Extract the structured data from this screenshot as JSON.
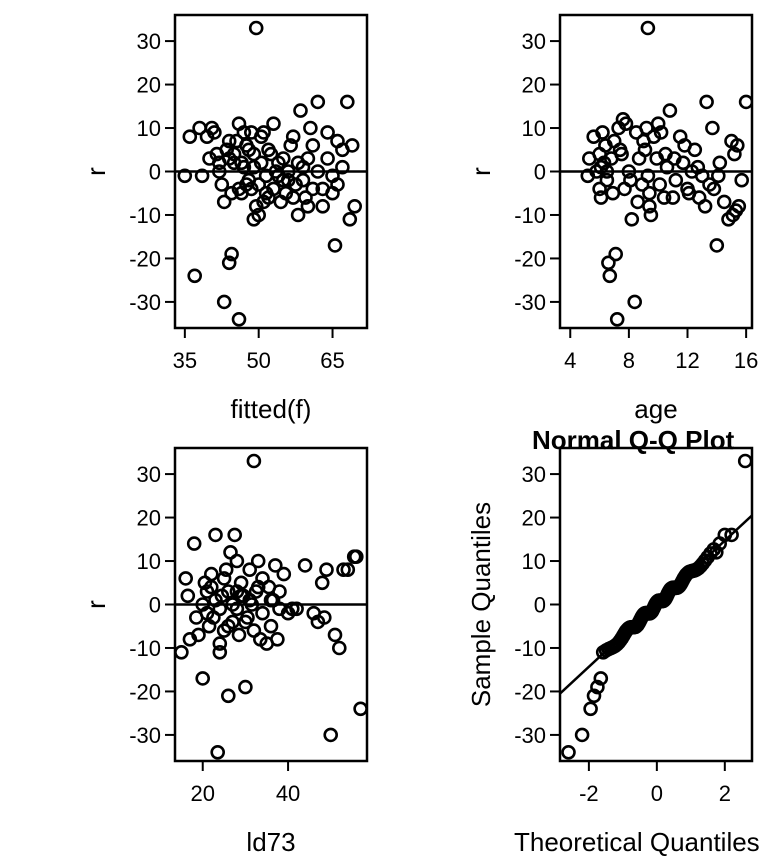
{
  "chart_data": [
    {
      "type": "scatter",
      "title": "",
      "xlabel": "fitted(f)",
      "ylabel": "r",
      "xlim": [
        33,
        72
      ],
      "ylim": [
        -36,
        36
      ],
      "xticks": [
        "35",
        "50",
        "65"
      ],
      "xtick_values": [
        35,
        50,
        65
      ],
      "yticks": [
        "30",
        "20",
        "10",
        "0",
        "-10",
        "-20",
        "-30"
      ],
      "ytick_values": [
        30,
        20,
        10,
        0,
        -10,
        -20,
        -30
      ],
      "reference_line": {
        "type": "horizontal",
        "y": 0
      },
      "marker": "open-circle",
      "points": [
        [
          49.5,
          33
        ],
        [
          36,
          8
        ],
        [
          38,
          10
        ],
        [
          39.5,
          8
        ],
        [
          40.5,
          10
        ],
        [
          41,
          9
        ],
        [
          42,
          2
        ],
        [
          43,
          -7
        ],
        [
          43.5,
          5
        ],
        [
          44,
          3
        ],
        [
          44.5,
          -5
        ],
        [
          45,
          4
        ],
        [
          45.5,
          7
        ],
        [
          46,
          11
        ],
        [
          46.5,
          2
        ],
        [
          47,
          9
        ],
        [
          47.5,
          -3
        ],
        [
          48,
          5
        ],
        [
          48.5,
          -4
        ],
        [
          49,
          1
        ],
        [
          49.5,
          -8
        ],
        [
          50,
          -10
        ],
        [
          50.5,
          8
        ],
        [
          51,
          9
        ],
        [
          51.5,
          -1
        ],
        [
          52,
          -6
        ],
        [
          52.5,
          4
        ],
        [
          53,
          11
        ],
        [
          53.5,
          0
        ],
        [
          54,
          -1
        ],
        [
          54.5,
          -7
        ],
        [
          55,
          3
        ],
        [
          55.5,
          -5
        ],
        [
          56,
          -2
        ],
        [
          56.5,
          6
        ],
        [
          57,
          8
        ],
        [
          57.5,
          -3
        ],
        [
          58,
          -10
        ],
        [
          58.5,
          14
        ],
        [
          59,
          1
        ],
        [
          59.5,
          -6
        ],
        [
          60,
          3
        ],
        [
          60.5,
          10
        ],
        [
          61,
          -4
        ],
        [
          62,
          16
        ],
        [
          63,
          -8
        ],
        [
          64,
          3
        ],
        [
          65,
          -5
        ],
        [
          65.5,
          -17
        ],
        [
          66,
          7
        ],
        [
          67,
          5
        ],
        [
          68,
          16
        ],
        [
          68.5,
          -11
        ],
        [
          69,
          6
        ],
        [
          69.5,
          -8
        ],
        [
          35,
          -1
        ],
        [
          37,
          -24
        ],
        [
          38.5,
          -1
        ],
        [
          40,
          3
        ],
        [
          41.5,
          4
        ],
        [
          42.5,
          -3
        ],
        [
          43,
          -30
        ],
        [
          44,
          -21
        ],
        [
          44.5,
          -19
        ],
        [
          46,
          -34
        ],
        [
          46.5,
          -5
        ],
        [
          47,
          1
        ],
        [
          48,
          -2
        ],
        [
          49,
          -11
        ],
        [
          49,
          4
        ],
        [
          50,
          -3
        ],
        [
          51,
          -7
        ],
        [
          52,
          5
        ],
        [
          53,
          -4
        ],
        [
          54,
          2
        ],
        [
          55,
          -2
        ],
        [
          56,
          0
        ],
        [
          57,
          -6
        ],
        [
          58,
          2
        ],
        [
          59,
          -2
        ],
        [
          60,
          -8
        ],
        [
          61,
          6
        ],
        [
          62,
          0
        ],
        [
          63,
          -4
        ],
        [
          64,
          9
        ],
        [
          65,
          -1
        ],
        [
          66,
          -3
        ],
        [
          67,
          1
        ],
        [
          42,
          0
        ],
        [
          44,
          7
        ],
        [
          45,
          2
        ],
        [
          46,
          -4
        ],
        [
          47.5,
          6
        ],
        [
          48.5,
          9
        ],
        [
          50.5,
          2
        ],
        [
          51.5,
          -5
        ]
      ]
    },
    {
      "type": "scatter",
      "title": "",
      "xlabel": "age",
      "ylabel": "r",
      "xlim": [
        3.3,
        16.4
      ],
      "ylim": [
        -36,
        36
      ],
      "xticks": [
        "4",
        "8",
        "12",
        "16"
      ],
      "xtick_values": [
        4,
        8,
        12,
        16
      ],
      "yticks": [
        "30",
        "20",
        "10",
        "0",
        "-10",
        "-20",
        "-30"
      ],
      "ytick_values": [
        30,
        20,
        10,
        0,
        -10,
        -20,
        -30
      ],
      "reference_line": {
        "type": "horizontal",
        "y": 0
      },
      "marker": "open-circle",
      "points": [
        [
          9.3,
          33
        ],
        [
          5.2,
          -1
        ],
        [
          5.3,
          3
        ],
        [
          5.6,
          8
        ],
        [
          5.8,
          0
        ],
        [
          6,
          4
        ],
        [
          6,
          -4
        ],
        [
          6.1,
          -6
        ],
        [
          6.2,
          9
        ],
        [
          6.3,
          2
        ],
        [
          6.4,
          6
        ],
        [
          6.5,
          -2
        ],
        [
          6.6,
          -21
        ],
        [
          6.7,
          -24
        ],
        [
          6.8,
          3
        ],
        [
          6.9,
          -5
        ],
        [
          7,
          7
        ],
        [
          7.1,
          -19
        ],
        [
          7.2,
          -34
        ],
        [
          7.3,
          10
        ],
        [
          7.5,
          4
        ],
        [
          7.6,
          12
        ],
        [
          7.8,
          11
        ],
        [
          8,
          0
        ],
        [
          8.2,
          -11
        ],
        [
          8.4,
          -30
        ],
        [
          8.5,
          9
        ],
        [
          8.7,
          3
        ],
        [
          8.9,
          -3
        ],
        [
          9.1,
          5
        ],
        [
          9.2,
          10
        ],
        [
          9.3,
          -1
        ],
        [
          9.4,
          -5
        ],
        [
          9.4,
          -8
        ],
        [
          9.5,
          -10
        ],
        [
          9.7,
          8
        ],
        [
          9.9,
          3
        ],
        [
          10,
          11
        ],
        [
          10.2,
          9
        ],
        [
          10.4,
          -6
        ],
        [
          10.6,
          1
        ],
        [
          10.8,
          14
        ],
        [
          11,
          -6
        ],
        [
          11.2,
          -2
        ],
        [
          11.5,
          8
        ],
        [
          11.7,
          2
        ],
        [
          12,
          -4
        ],
        [
          12.3,
          0
        ],
        [
          12.5,
          5
        ],
        [
          12.8,
          -6
        ],
        [
          13,
          -1
        ],
        [
          13.3,
          16
        ],
        [
          13.5,
          -3
        ],
        [
          13.7,
          10
        ],
        [
          14,
          -17
        ],
        [
          14.2,
          2
        ],
        [
          14.5,
          -7
        ],
        [
          14.8,
          -11
        ],
        [
          15,
          7
        ],
        [
          15.1,
          -10
        ],
        [
          15.2,
          4
        ],
        [
          15.4,
          6
        ],
        [
          15.5,
          -8
        ],
        [
          15.7,
          -2
        ],
        [
          16,
          16
        ],
        [
          6.5,
          0
        ],
        [
          7.4,
          5
        ],
        [
          8.1,
          -2
        ],
        [
          9,
          7
        ],
        [
          10.1,
          -3
        ],
        [
          11.1,
          3
        ],
        [
          12.1,
          -5
        ],
        [
          13.2,
          -8
        ],
        [
          14.1,
          -1
        ],
        [
          15.3,
          -9
        ],
        [
          6.1,
          1
        ],
        [
          7.7,
          -4
        ],
        [
          8.6,
          -7
        ],
        [
          10.5,
          4
        ],
        [
          11.8,
          6
        ],
        [
          12.7,
          1
        ],
        [
          13.8,
          -4
        ]
      ]
    },
    {
      "type": "scatter",
      "title": "",
      "xlabel": "ld73",
      "ylabel": "r",
      "xlim": [
        13.5,
        58.5
      ],
      "ylim": [
        -36,
        36
      ],
      "xticks": [
        "20",
        "40"
      ],
      "xtick_values": [
        20,
        40
      ],
      "yticks": [
        "30",
        "20",
        "10",
        "0",
        "-10",
        "-20",
        "-30"
      ],
      "ytick_values": [
        30,
        20,
        10,
        0,
        -10,
        -20,
        -30
      ],
      "reference_line": {
        "type": "horizontal",
        "y": 0
      },
      "marker": "open-circle",
      "points": [
        [
          32,
          33
        ],
        [
          15,
          -11
        ],
        [
          16,
          6
        ],
        [
          16.5,
          2
        ],
        [
          17,
          -8
        ],
        [
          18,
          14
        ],
        [
          18.5,
          -3
        ],
        [
          19,
          -7
        ],
        [
          20,
          -17
        ],
        [
          20.5,
          5
        ],
        [
          21,
          3
        ],
        [
          21.5,
          -5
        ],
        [
          22,
          7
        ],
        [
          22.5,
          -3
        ],
        [
          23,
          16
        ],
        [
          23.5,
          -34
        ],
        [
          24,
          -11
        ],
        [
          24.5,
          2
        ],
        [
          25,
          -6
        ],
        [
          25.5,
          8
        ],
        [
          26,
          -21
        ],
        [
          26.5,
          12
        ],
        [
          27,
          -4
        ],
        [
          27.5,
          16
        ],
        [
          28,
          3
        ],
        [
          28.5,
          -7
        ],
        [
          29,
          5
        ],
        [
          29.5,
          2
        ],
        [
          30,
          -19
        ],
        [
          30.5,
          -3
        ],
        [
          31,
          8
        ],
        [
          31.5,
          0
        ],
        [
          32,
          -6
        ],
        [
          32.5,
          3
        ],
        [
          33,
          10
        ],
        [
          33.5,
          -8
        ],
        [
          34,
          -2
        ],
        [
          35,
          -9
        ],
        [
          35.5,
          4
        ],
        [
          36,
          -5
        ],
        [
          36.5,
          1
        ],
        [
          37,
          9
        ],
        [
          37.5,
          -8
        ],
        [
          38,
          -1
        ],
        [
          39,
          7
        ],
        [
          40,
          -2
        ],
        [
          42,
          -1
        ],
        [
          44,
          9
        ],
        [
          46,
          -2
        ],
        [
          47,
          -4
        ],
        [
          48,
          5
        ],
        [
          48.5,
          -3
        ],
        [
          49,
          8
        ],
        [
          50,
          -30
        ],
        [
          51,
          -7
        ],
        [
          52,
          -10
        ],
        [
          53,
          8
        ],
        [
          54,
          8
        ],
        [
          55.5,
          11
        ],
        [
          56,
          11
        ],
        [
          57,
          -24
        ],
        [
          20,
          0
        ],
        [
          21,
          -2
        ],
        [
          22,
          4
        ],
        [
          23,
          1
        ],
        [
          24,
          -1
        ],
        [
          25,
          6
        ],
        [
          26,
          3
        ],
        [
          27,
          0
        ],
        [
          28,
          -1
        ],
        [
          29,
          2
        ],
        [
          30,
          -4
        ],
        [
          31,
          1
        ],
        [
          33,
          4
        ],
        [
          34,
          6
        ],
        [
          36,
          1
        ],
        [
          38,
          3
        ],
        [
          41,
          -1
        ],
        [
          24,
          -9
        ],
        [
          26,
          -5
        ],
        [
          28,
          10
        ]
      ]
    },
    {
      "type": "scatter",
      "title": "Normal Q-Q Plot",
      "xlabel": "Theoretical Quantiles",
      "ylabel": "Sample Quantiles",
      "xlim": [
        -2.85,
        2.8
      ],
      "ylim": [
        -36,
        36
      ],
      "xticks": [
        "-2",
        "0",
        "2"
      ],
      "xtick_values": [
        -2,
        0,
        2
      ],
      "yticks": [
        "30",
        "20",
        "10",
        "0",
        "-10",
        "-20",
        "-30"
      ],
      "ytick_values": [
        30,
        20,
        10,
        0,
        -10,
        -20,
        -30
      ],
      "reference_line": {
        "type": "line",
        "x1": -2.85,
        "y1": -20.5,
        "x2": 2.8,
        "y2": 20.5
      },
      "marker": "open-circle",
      "qq": {
        "n": 96,
        "z_min": -2.6,
        "z_max": 2.6,
        "slope": 7.3
      },
      "points": [
        [
          -2.6,
          -34
        ],
        [
          -2.2,
          -30
        ],
        [
          -1.95,
          -24
        ],
        [
          -1.85,
          -21
        ],
        [
          -1.75,
          -19
        ],
        [
          -1.65,
          -17
        ],
        [
          2.6,
          33
        ],
        [
          2.2,
          16
        ],
        [
          2.0,
          16
        ],
        [
          1.85,
          14
        ],
        [
          1.75,
          12
        ]
      ]
    }
  ]
}
